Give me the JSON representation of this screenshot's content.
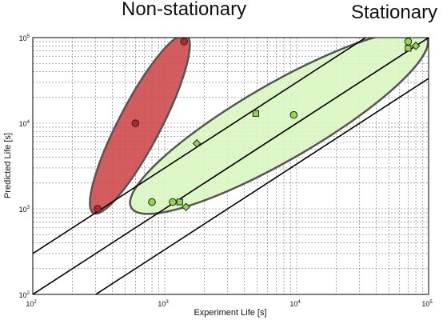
{
  "chart_data": {
    "type": "scatter",
    "scale": "log-log",
    "title": "",
    "xlabel": "Experiment Life [s]",
    "ylabel": "Predicted Life [s]",
    "xlim": [
      100,
      100000
    ],
    "ylim": [
      100,
      100000
    ],
    "grid": true,
    "x_ticks": [
      {
        "base": "10",
        "exp": "2",
        "value": 100
      },
      {
        "base": "10",
        "exp": "3",
        "value": 1000
      },
      {
        "base": "10",
        "exp": "4",
        "value": 10000
      },
      {
        "base": "10",
        "exp": "5",
        "value": 100000
      }
    ],
    "y_ticks": [
      {
        "base": "10",
        "exp": "2",
        "value": 100
      },
      {
        "base": "10",
        "exp": "3",
        "value": 1000
      },
      {
        "base": "10",
        "exp": "4",
        "value": 10000
      },
      {
        "base": "10",
        "exp": "5",
        "value": 100000
      }
    ],
    "reference_lines": [
      {
        "factor": 3,
        "color": "#000000"
      },
      {
        "factor": 1,
        "color": "#000000"
      },
      {
        "factor": 0.3333,
        "color": "#000000"
      }
    ],
    "groups": [
      {
        "label": "Non-stationary",
        "fill": "#cd4a4d",
        "stroke": "#555555",
        "ellipse": {
          "p1": [
            300,
            1000
          ],
          "p2": [
            1400,
            95000
          ],
          "minor_frac": 0.22
        },
        "points": [
          {
            "x": 310,
            "y": 1000,
            "marker": "circle"
          },
          {
            "x": 600,
            "y": 10000,
            "marker": "circle"
          },
          {
            "x": 1400,
            "y": 90000,
            "marker": "circle"
          }
        ]
      },
      {
        "label": "Stationary",
        "fill": "#d9f6c0",
        "stroke": "#555555",
        "ellipse": {
          "p1": [
            600,
            1100
          ],
          "p2": [
            90000,
            95000
          ],
          "minor_frac": 0.23
        },
        "points": [
          {
            "x": 800,
            "y": 1200,
            "marker": "circle"
          },
          {
            "x": 1150,
            "y": 1200,
            "marker": "circle"
          },
          {
            "x": 1300,
            "y": 1200,
            "marker": "square"
          },
          {
            "x": 1450,
            "y": 1050,
            "marker": "diamond"
          },
          {
            "x": 1750,
            "y": 5800,
            "marker": "diamond"
          },
          {
            "x": 4900,
            "y": 13000,
            "marker": "square"
          },
          {
            "x": 9500,
            "y": 12500,
            "marker": "circle"
          },
          {
            "x": 70000,
            "y": 90000,
            "marker": "circle"
          },
          {
            "x": 70000,
            "y": 75000,
            "marker": "square"
          },
          {
            "x": 80000,
            "y": 80000,
            "marker": "diamond"
          }
        ]
      }
    ],
    "colors": {
      "non_stationary_marker": "#b3282d",
      "stationary_marker": "#8fd84f",
      "marker_stroke": "#222222"
    }
  }
}
